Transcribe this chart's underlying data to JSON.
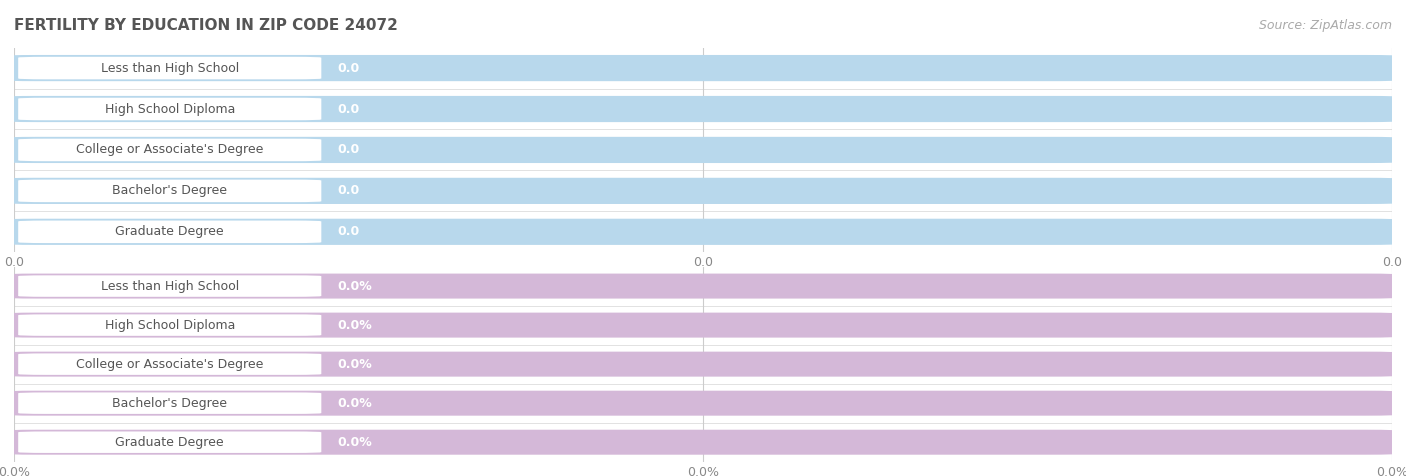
{
  "title": "FERTILITY BY EDUCATION IN ZIP CODE 24072",
  "source": "Source: ZipAtlas.com",
  "categories": [
    "Less than High School",
    "High School Diploma",
    "College or Associate's Degree",
    "Bachelor's Degree",
    "Graduate Degree"
  ],
  "top_values": [
    "0.0",
    "0.0",
    "0.0",
    "0.0",
    "0.0"
  ],
  "bottom_values": [
    "0.0%",
    "0.0%",
    "0.0%",
    "0.0%",
    "0.0%"
  ],
  "top_bar_color": "#b8d8ec",
  "bottom_bar_color": "#d4b8d8",
  "row_bg": "#ebebeb",
  "label_bg": "#ffffff",
  "label_text_color": "#555555",
  "value_text_color": "#ffffff",
  "grid_color": "#cccccc",
  "title_color": "#555555",
  "title_fontsize": 11,
  "label_fontsize": 9,
  "value_fontsize": 9,
  "tick_fontsize": 9,
  "source_fontsize": 9,
  "bg_color": "#ffffff",
  "top_tick_labels": [
    "0.0",
    "0.0",
    "0.0"
  ],
  "bottom_tick_labels": [
    "0.0%",
    "0.0%",
    "0.0%"
  ]
}
